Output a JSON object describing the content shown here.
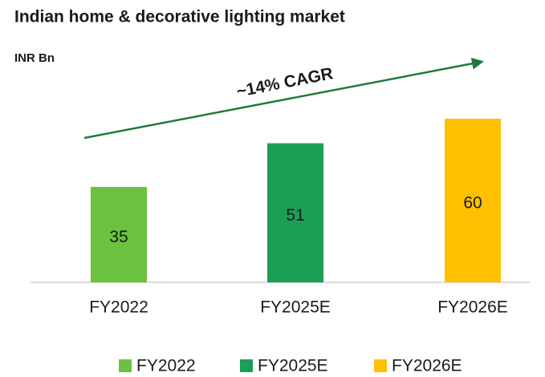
{
  "chart_data": {
    "type": "bar",
    "title": "Indian home & decorative lighting market",
    "y_label": "INR Bn",
    "annotation": "~14% CAGR",
    "categories": [
      "FY2022",
      "FY2025E",
      "FY2026E"
    ],
    "values": [
      35,
      51,
      60
    ],
    "colors": [
      "#6cc13f",
      "#1b9e55",
      "#ffc000"
    ],
    "legend": "bottom"
  }
}
